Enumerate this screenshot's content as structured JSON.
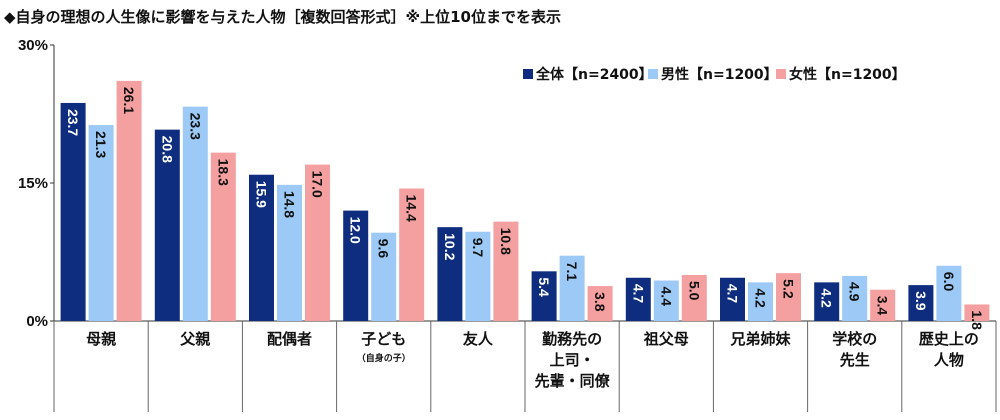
{
  "title": "◆自身の理想の人生像に影響を与えた人物［複数回答形式］※上位10位までを表示",
  "chart_data": {
    "type": "bar",
    "title": "◆自身の理想の人生像に影響を与えた人物［複数回答形式］※上位10位までを表示",
    "categories": [
      [
        "母親"
      ],
      [
        "父親"
      ],
      [
        "配偶者"
      ],
      [
        "子ども"
      ],
      [
        "友人"
      ],
      [
        "勤務先の",
        "上司・",
        "先輩・同僚"
      ],
      [
        "祖父母"
      ],
      [
        "兄弟姉妹"
      ],
      [
        "学校の",
        "先生"
      ],
      [
        "歴史上の",
        "人物"
      ]
    ],
    "category_notes": [
      "",
      "",
      "",
      "（自身の子）",
      "",
      "",
      "",
      "",
      "",
      ""
    ],
    "series": [
      {
        "name": "全体【n=2400】",
        "color": "#0f2d7f",
        "label_color": "#ffffff",
        "values": [
          23.7,
          20.8,
          15.9,
          12.0,
          10.2,
          5.4,
          4.7,
          4.7,
          4.2,
          3.9
        ]
      },
      {
        "name": "男性【n=1200】",
        "color": "#9cc9f5",
        "label_color": "#111111",
        "values": [
          21.3,
          23.3,
          14.8,
          9.6,
          9.7,
          7.1,
          4.4,
          4.2,
          4.9,
          6.0
        ]
      },
      {
        "name": "女性【n=1200】",
        "color": "#f4a0a0",
        "label_color": "#111111",
        "values": [
          26.1,
          18.3,
          17.0,
          14.4,
          10.8,
          3.8,
          5.0,
          5.2,
          3.4,
          1.8
        ]
      }
    ],
    "y_ticks": [
      "0%",
      "15%",
      "30%"
    ],
    "ylim": [
      0,
      30
    ],
    "legend_position": "top-right",
    "grid": false
  }
}
